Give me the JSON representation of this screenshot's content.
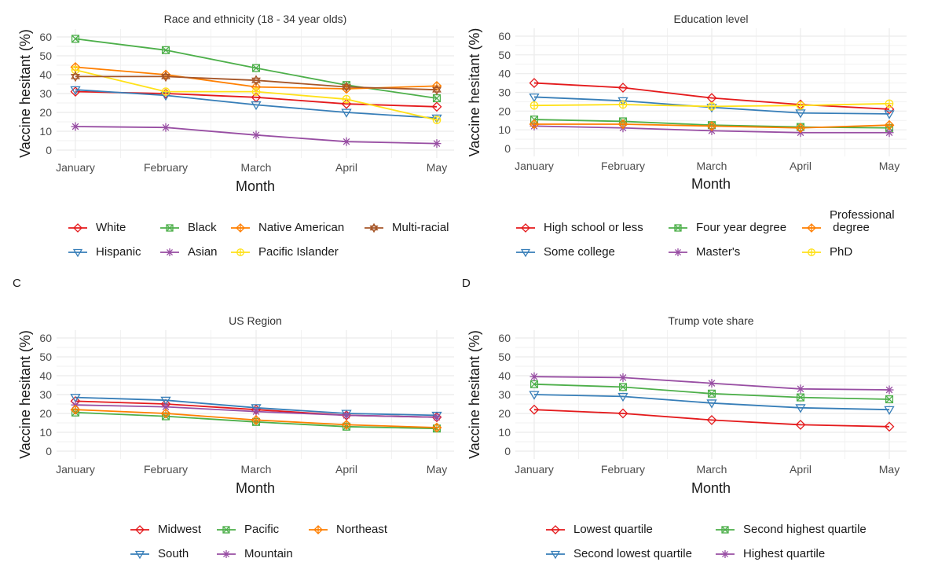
{
  "panel_tags": [
    "C",
    "D"
  ],
  "chart_data": [
    {
      "type": "line",
      "title": "Race and ethnicity (18 - 34 year olds)",
      "xlabel": "Month",
      "ylabel": "Vaccine hesitant (%)",
      "categories": [
        "January",
        "February",
        "March",
        "April",
        "May"
      ],
      "ylim": [
        0,
        60
      ],
      "yticks": [
        0,
        10,
        20,
        30,
        40,
        50,
        60
      ],
      "grid": true,
      "legend_position": "bottom",
      "series": [
        {
          "name": "White",
          "color": "#e41a1c",
          "marker": "diamond",
          "values": [
            31,
            30,
            28,
            24.5,
            23
          ]
        },
        {
          "name": "Hispanic",
          "color": "#377eb8",
          "marker": "triangle-down",
          "values": [
            32,
            29,
            24,
            20,
            17
          ]
        },
        {
          "name": "Black",
          "color": "#4daf4a",
          "marker": "square-cross",
          "values": [
            59,
            53,
            43.5,
            34.5,
            27.5
          ]
        },
        {
          "name": "Asian",
          "color": "#984ea3",
          "marker": "asterisk",
          "values": [
            12.5,
            12,
            8,
            4.5,
            3.5
          ]
        },
        {
          "name": "Native American",
          "color": "#ff7f00",
          "marker": "diamond-plus",
          "values": [
            44,
            40,
            33.5,
            32.5,
            34
          ]
        },
        {
          "name": "Pacific Islander",
          "color": "#ffe119",
          "marker": "circle-plus",
          "values": [
            42.5,
            31,
            31,
            27,
            16
          ]
        },
        {
          "name": "Multi-racial",
          "color": "#a65628",
          "marker": "star-of-david",
          "values": [
            39,
            39,
            37,
            33.5,
            32
          ]
        }
      ]
    },
    {
      "type": "line",
      "title": "Education level",
      "xlabel": "Month",
      "ylabel": "Vaccine hesitant (%)",
      "categories": [
        "January",
        "February",
        "March",
        "April",
        "May"
      ],
      "ylim": [
        0,
        60
      ],
      "yticks": [
        0,
        10,
        20,
        30,
        40,
        50,
        60
      ],
      "grid": true,
      "legend_position": "bottom",
      "series": [
        {
          "name": "High school or less",
          "color": "#e41a1c",
          "marker": "diamond",
          "values": [
            35,
            32.5,
            27,
            23.5,
            21
          ]
        },
        {
          "name": "Some college",
          "color": "#377eb8",
          "marker": "triangle-down",
          "values": [
            27.5,
            25.5,
            22,
            19,
            18.5
          ]
        },
        {
          "name": "Four year degree",
          "color": "#4daf4a",
          "marker": "square-cross",
          "values": [
            15.5,
            14.5,
            12.5,
            11.5,
            11
          ]
        },
        {
          "name": "Master's",
          "color": "#984ea3",
          "marker": "asterisk",
          "values": [
            12,
            11,
            9.5,
            8.5,
            8.5
          ]
        },
        {
          "name": "Professional\n degree",
          "color": "#ff7f00",
          "marker": "diamond-plus",
          "values": [
            13,
            13,
            12,
            11,
            12.5
          ]
        },
        {
          "name": "PhD",
          "color": "#ffe119",
          "marker": "circle-plus",
          "values": [
            23,
            23.5,
            22.5,
            23,
            24
          ]
        }
      ]
    },
    {
      "type": "line",
      "title": "US Region",
      "xlabel": "Month",
      "ylabel": "Vaccine hesitant (%)",
      "categories": [
        "January",
        "February",
        "March",
        "April",
        "May"
      ],
      "ylim": [
        0,
        60
      ],
      "yticks": [
        0,
        10,
        20,
        30,
        40,
        50,
        60
      ],
      "grid": true,
      "legend_position": "bottom",
      "series": [
        {
          "name": "Midwest",
          "color": "#e41a1c",
          "marker": "diamond",
          "values": [
            26.5,
            25,
            22,
            19,
            18
          ]
        },
        {
          "name": "South",
          "color": "#377eb8",
          "marker": "triangle-down",
          "values": [
            28.5,
            27,
            23,
            20,
            19
          ]
        },
        {
          "name": "Pacific",
          "color": "#4daf4a",
          "marker": "square-cross",
          "values": [
            20.5,
            18.5,
            15.5,
            13,
            12
          ]
        },
        {
          "name": "Mountain",
          "color": "#984ea3",
          "marker": "asterisk",
          "values": [
            24.5,
            23.5,
            21,
            19,
            18
          ]
        },
        {
          "name": "Northeast",
          "color": "#ff7f00",
          "marker": "diamond-plus",
          "values": [
            22,
            20,
            16.5,
            14,
            12.5
          ]
        }
      ]
    },
    {
      "type": "line",
      "title": "Trump vote share",
      "xlabel": "Month",
      "ylabel": "Vaccine hesitant (%)",
      "categories": [
        "January",
        "February",
        "March",
        "April",
        "May"
      ],
      "ylim": [
        0,
        60
      ],
      "yticks": [
        0,
        10,
        20,
        30,
        40,
        50,
        60
      ],
      "grid": true,
      "legend_position": "bottom",
      "series": [
        {
          "name": "Lowest quartile",
          "color": "#e41a1c",
          "marker": "diamond",
          "values": [
            22,
            20,
            16.5,
            14,
            13
          ]
        },
        {
          "name": "Second lowest quartile",
          "color": "#377eb8",
          "marker": "triangle-down",
          "values": [
            30,
            29,
            25.5,
            23,
            22
          ]
        },
        {
          "name": "Second highest quartile",
          "color": "#4daf4a",
          "marker": "square-cross",
          "values": [
            35.5,
            34,
            30.5,
            28.5,
            27.5
          ]
        },
        {
          "name": "Highest quartile",
          "color": "#984ea3",
          "marker": "asterisk",
          "values": [
            39.5,
            39,
            36,
            33,
            32.5
          ]
        }
      ]
    }
  ]
}
